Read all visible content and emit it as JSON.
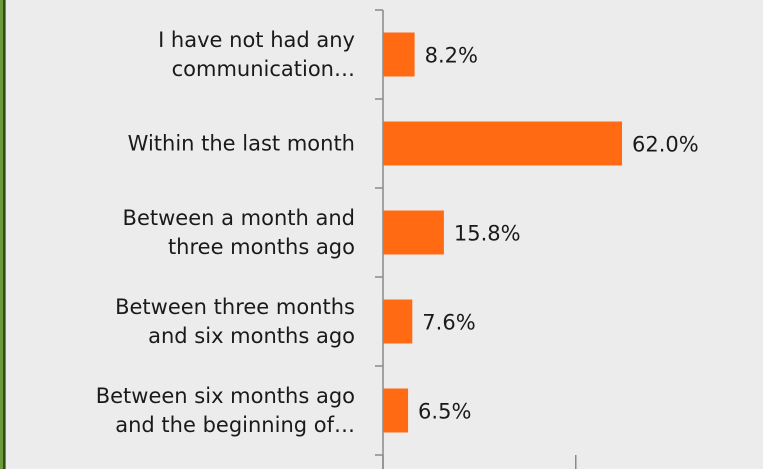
{
  "chart_data": {
    "type": "bar",
    "orientation": "horizontal",
    "categories": [
      "I have not had any\ncommunication…",
      "Within the last month",
      "Between a month and\nthree months ago",
      "Between three months\nand six months ago",
      "Between six months ago\nand the beginning of…"
    ],
    "values": [
      8.2,
      62.0,
      15.8,
      7.6,
      6.5
    ],
    "value_labels": [
      "8.2%",
      "62.0%",
      "15.8%",
      "7.6%",
      "6.5%"
    ],
    "color": "#ff6a13",
    "xlim": [
      0,
      100
    ],
    "xticks": [
      0,
      50,
      100
    ]
  }
}
